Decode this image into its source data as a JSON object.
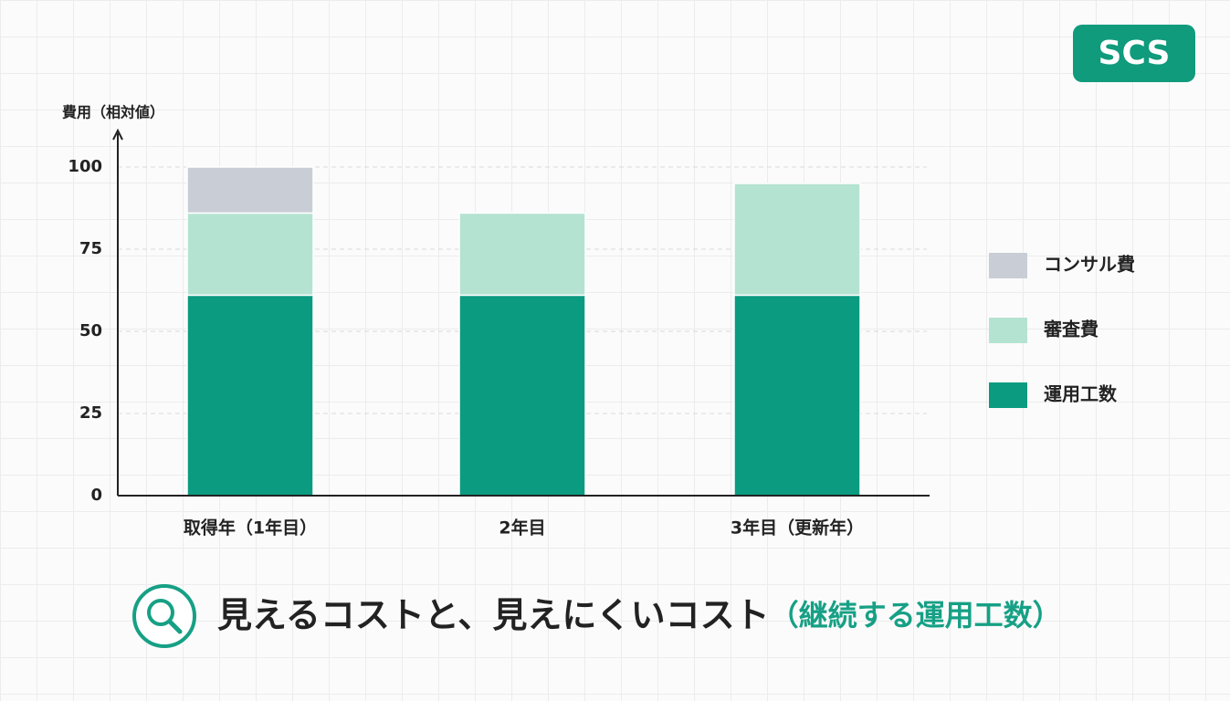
{
  "chart_data": {
    "type": "stacked-bar",
    "badge": "SCS",
    "y_label": "費用（相対値）",
    "categories": [
      "取得年（1年目）",
      "2年目",
      "3年目（更新年）"
    ],
    "series": [
      {
        "name": "運用工数",
        "color": "#0a9b80",
        "values": [
          61,
          61,
          61
        ]
      },
      {
        "name": "審査費",
        "color": "#b5e3d1",
        "values": [
          25,
          25,
          34
        ]
      },
      {
        "name": "コンサル費",
        "color": "#c9cdd6",
        "values": [
          14,
          null,
          null
        ]
      }
    ],
    "ylim": [
      0,
      100
    ],
    "yticks": [
      0,
      25,
      50,
      75,
      100
    ],
    "grid": true,
    "legend": "right",
    "caption": "見えるコストと、見えにくいコスト",
    "caption_note": "（継続する運用工数）"
  }
}
